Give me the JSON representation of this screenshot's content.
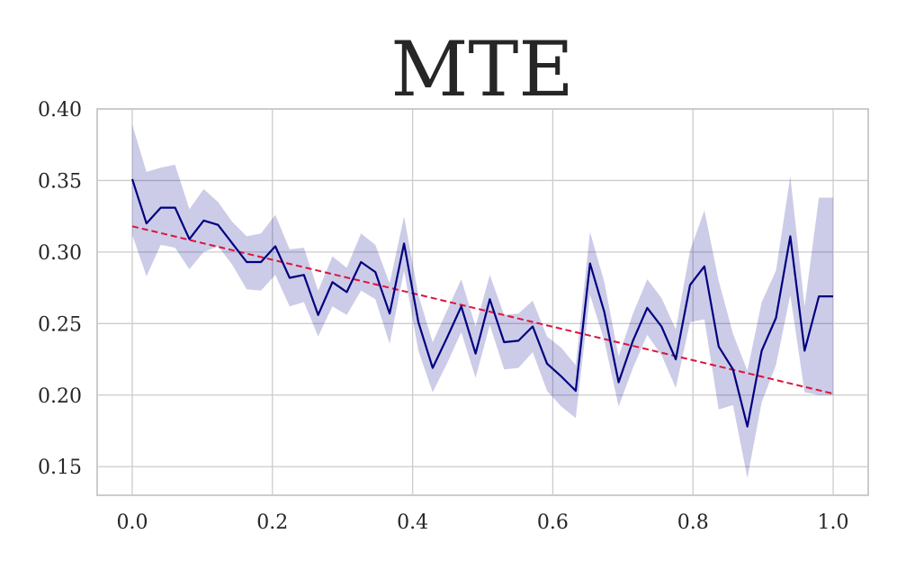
{
  "chart_data": {
    "type": "line",
    "title": "MTE",
    "xlabel": "",
    "ylabel": "",
    "xlim": [
      -0.05,
      1.05
    ],
    "ylim": [
      0.13,
      0.4
    ],
    "grid": true,
    "xticks": [
      0.0,
      0.2,
      0.4,
      0.6,
      0.8,
      1.0
    ],
    "xtick_labels": [
      "0.0",
      "0.2",
      "0.4",
      "0.6",
      "0.8",
      "1.0"
    ],
    "yticks": [
      0.15,
      0.2,
      0.25,
      0.3,
      0.35,
      0.4
    ],
    "ytick_labels": [
      "0.15",
      "0.20",
      "0.25",
      "0.30",
      "0.35",
      "0.40"
    ],
    "series": [
      {
        "color": "#000080",
        "x": [
          0.0,
          0.0204,
          0.0408,
          0.0612,
          0.0816,
          0.102,
          0.1224,
          0.1429,
          0.1633,
          0.1837,
          0.2041,
          0.2245,
          0.2449,
          0.2653,
          0.2857,
          0.3061,
          0.3265,
          0.3469,
          0.3673,
          0.3878,
          0.4082,
          0.4286,
          0.449,
          0.4694,
          0.4898,
          0.5102,
          0.5306,
          0.551,
          0.5714,
          0.5918,
          0.6122,
          0.6327,
          0.6531,
          0.6735,
          0.6939,
          0.7143,
          0.7347,
          0.7551,
          0.7755,
          0.7959,
          0.8163,
          0.8367,
          0.8571,
          0.8776,
          0.898,
          0.9184,
          0.9388,
          0.9592,
          0.9796,
          1.0
        ],
        "y": [
          0.351,
          0.32,
          0.331,
          0.331,
          0.309,
          0.322,
          0.319,
          0.306,
          0.293,
          0.293,
          0.304,
          0.282,
          0.284,
          0.256,
          0.279,
          0.272,
          0.293,
          0.286,
          0.257,
          0.306,
          0.251,
          0.219,
          0.24,
          0.262,
          0.229,
          0.267,
          0.237,
          0.238,
          0.248,
          0.222,
          0.213,
          0.203,
          0.292,
          0.258,
          0.209,
          0.238,
          0.261,
          0.248,
          0.225,
          0.277,
          0.29,
          0.234,
          0.218,
          0.178,
          0.231,
          0.254,
          0.311,
          0.231,
          0.269,
          0.269
        ],
        "lower": [
          0.312,
          0.283,
          0.305,
          0.303,
          0.288,
          0.3,
          0.304,
          0.291,
          0.274,
          0.273,
          0.284,
          0.262,
          0.265,
          0.241,
          0.262,
          0.256,
          0.273,
          0.267,
          0.236,
          0.287,
          0.231,
          0.202,
          0.222,
          0.244,
          0.212,
          0.249,
          0.218,
          0.219,
          0.23,
          0.203,
          0.192,
          0.184,
          0.27,
          0.238,
          0.192,
          0.219,
          0.242,
          0.228,
          0.205,
          0.251,
          0.253,
          0.19,
          0.193,
          0.142,
          0.195,
          0.221,
          0.27,
          0.202,
          0.2,
          0.2
        ],
        "upper": [
          0.389,
          0.356,
          0.359,
          0.361,
          0.33,
          0.344,
          0.335,
          0.321,
          0.311,
          0.313,
          0.326,
          0.302,
          0.303,
          0.273,
          0.297,
          0.289,
          0.313,
          0.305,
          0.278,
          0.325,
          0.27,
          0.237,
          0.259,
          0.281,
          0.248,
          0.284,
          0.256,
          0.257,
          0.266,
          0.241,
          0.233,
          0.221,
          0.314,
          0.279,
          0.227,
          0.257,
          0.281,
          0.268,
          0.246,
          0.301,
          0.329,
          0.28,
          0.243,
          0.217,
          0.265,
          0.287,
          0.353,
          0.262,
          0.338,
          0.338
        ]
      },
      {
        "style": "dashed",
        "color": "#dc143c",
        "x": [
          0.0,
          1.0
        ],
        "y": [
          0.318,
          0.201
        ]
      }
    ]
  }
}
